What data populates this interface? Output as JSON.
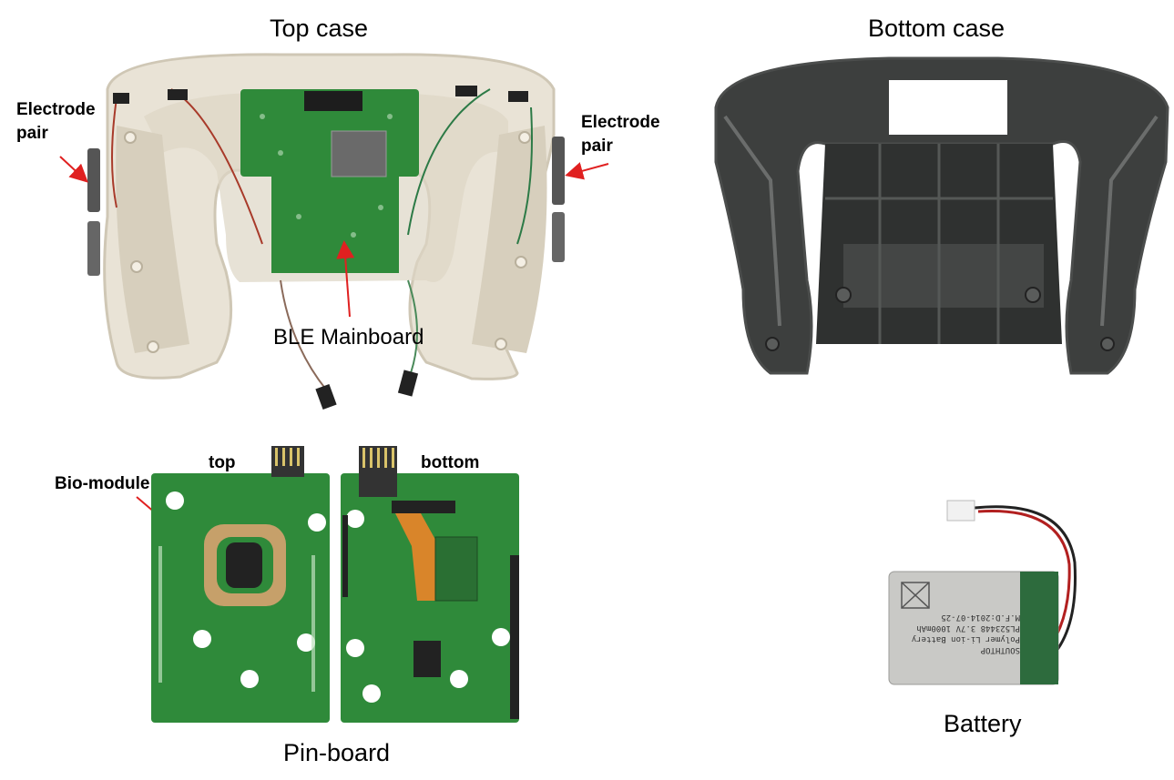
{
  "titles": {
    "top_case": "Top case",
    "bottom_case": "Bottom case",
    "pin_board": "Pin-board",
    "battery": "Battery"
  },
  "labels": {
    "electrode_left_line1": "Electrode",
    "electrode_left_line2": "pair",
    "electrode_right_line1": "Electrode",
    "electrode_right_line2": "pair",
    "ble_mainboard": "BLE Mainboard",
    "top": "top",
    "bottom": "bottom",
    "bio_module": "Bio-module"
  },
  "battery_print": {
    "line1": "SOUTHTOP",
    "line2": "Polymer Li-ion Battery",
    "line3": "PL523448 3.7V 1000mAh",
    "line4": "M.F.D:2014-07-25"
  },
  "colors": {
    "case_top": "#e9e3d6",
    "case_bottom": "#3d3f3e",
    "pcb_green": "#2f8a3a",
    "arrow_red": "#e02020",
    "battery_silver": "#c9c9c6",
    "battery_green": "#2d6b3d"
  }
}
